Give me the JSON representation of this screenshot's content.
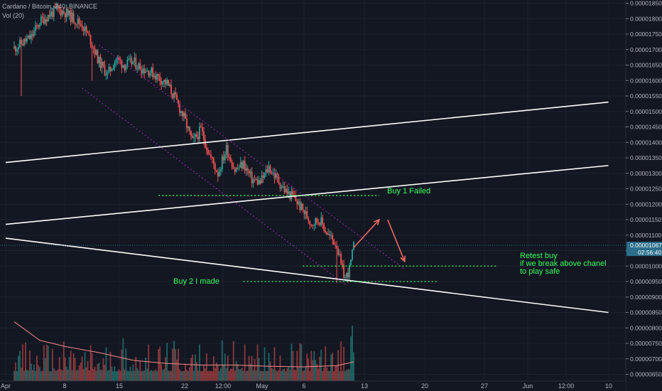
{
  "header": {
    "title": "Cardano / Bitcoin, 240, BINANCE",
    "volume_label": "Vol (20)"
  },
  "price_tag": {
    "value": "0.00001067",
    "countdown": "02:56:40",
    "color": "#2b6e8c"
  },
  "colors": {
    "background": "#131722",
    "grid": "#1e2230",
    "candle_up": "#26a69a",
    "candle_down": "#ef5350",
    "trendline": "#ffffff",
    "channel": "#9c27b0",
    "level": "#39ff5a",
    "arrow": "#ef6a5e",
    "vol_ma": "#f08a8a"
  },
  "chart_data": {
    "type": "candlestick",
    "title": "Cardano / Bitcoin, 240, BINANCE",
    "pair": "ADA/BTC",
    "timeframe": "240",
    "ylim": [
      6.4e-06,
      1.85e-05
    ],
    "y_ticks": [
      "0.00001850",
      "0.00001800",
      "0.00001750",
      "0.00001700",
      "0.00001650",
      "0.00001600",
      "0.00001550",
      "0.00001500",
      "0.00001450",
      "0.00001400",
      "0.00001350",
      "0.00001300",
      "0.00001250",
      "0.00001200",
      "0.00001150",
      "0.00001100",
      "0.00001050",
      "0.00001000",
      "0.00000950",
      "0.00000900",
      "0.00000850",
      "0.00000800",
      "0.00000750",
      "0.00000700",
      "0.00000650"
    ],
    "x_ticks": [
      "Apr",
      "8",
      "15",
      "22",
      "12:00",
      "May",
      "6",
      "13",
      "20",
      "27",
      "Jun",
      "12:00",
      "10"
    ],
    "price_path": [
      [
        0,
        1.705
      ],
      [
        2,
        1.74
      ],
      [
        3,
        1.79
      ],
      [
        4,
        1.81
      ],
      [
        5,
        1.83
      ],
      [
        6,
        1.82
      ],
      [
        8,
        1.78
      ],
      [
        9,
        1.73
      ],
      [
        10,
        1.66
      ],
      [
        11,
        1.62
      ],
      [
        12,
        1.67
      ],
      [
        13,
        1.65
      ],
      [
        14,
        1.66
      ],
      [
        15,
        1.64
      ],
      [
        16,
        1.63
      ],
      [
        17,
        1.61
      ],
      [
        18,
        1.59
      ],
      [
        19,
        1.54
      ],
      [
        20,
        1.48
      ],
      [
        21,
        1.4
      ],
      [
        22,
        1.44
      ],
      [
        23,
        1.36
      ],
      [
        24,
        1.3
      ],
      [
        25,
        1.38
      ],
      [
        26,
        1.31
      ],
      [
        27,
        1.33
      ],
      [
        28,
        1.28
      ],
      [
        29,
        1.27
      ],
      [
        30,
        1.32
      ],
      [
        31,
        1.28
      ],
      [
        32,
        1.24
      ],
      [
        33,
        1.22
      ],
      [
        34,
        1.18
      ],
      [
        35,
        1.14
      ],
      [
        36,
        1.15
      ],
      [
        37,
        1.1
      ],
      [
        38,
        1.07
      ],
      [
        38.5,
        1.0
      ],
      [
        39,
        0.96
      ],
      [
        39.5,
        0.99
      ],
      [
        40,
        1.062
      ]
    ],
    "volume_ma_path": [
      [
        0,
        0.82
      ],
      [
        3,
        0.76
      ],
      [
        6,
        0.74
      ],
      [
        10,
        0.72
      ],
      [
        14,
        0.695
      ],
      [
        18,
        0.685
      ],
      [
        22,
        0.68
      ],
      [
        26,
        0.68
      ],
      [
        30,
        0.676
      ],
      [
        34,
        0.674
      ],
      [
        38,
        0.678
      ],
      [
        40,
        0.69
      ]
    ],
    "lines": [
      {
        "name": "upper-trendline",
        "from": [
          -1,
          1.335
        ],
        "to": [
          70,
          1.53
        ]
      },
      {
        "name": "middle-trendline",
        "from": [
          -1,
          1.135
        ],
        "to": [
          70,
          1.325
        ]
      },
      {
        "name": "lower-trendline",
        "from": [
          -1,
          1.09
        ],
        "to": [
          70,
          0.85
        ]
      },
      {
        "name": "channel-upper",
        "from": [
          10,
          1.715
        ],
        "to": [
          46,
          0.99
        ]
      },
      {
        "name": "channel-lower",
        "from": [
          8,
          1.575
        ],
        "to": [
          39,
          0.94
        ]
      }
    ],
    "levels": [
      {
        "label": "Buy 1 Failed",
        "price": 1.228,
        "from": 17,
        "to": 43
      },
      {
        "label": "Retest buy\nif we break above chanel\nto play safe",
        "price": 1.0,
        "from": 34,
        "to": 57
      },
      {
        "label": "Buy 2 I made",
        "price": 0.95,
        "from": 27,
        "to": 50
      }
    ],
    "arrows": [
      {
        "from": [
          40,
          1.06
        ],
        "to": [
          43,
          1.15
        ]
      },
      {
        "from": [
          44,
          1.15
        ],
        "to": [
          46,
          1.015
        ]
      }
    ],
    "last_price": 1.067e-05
  }
}
